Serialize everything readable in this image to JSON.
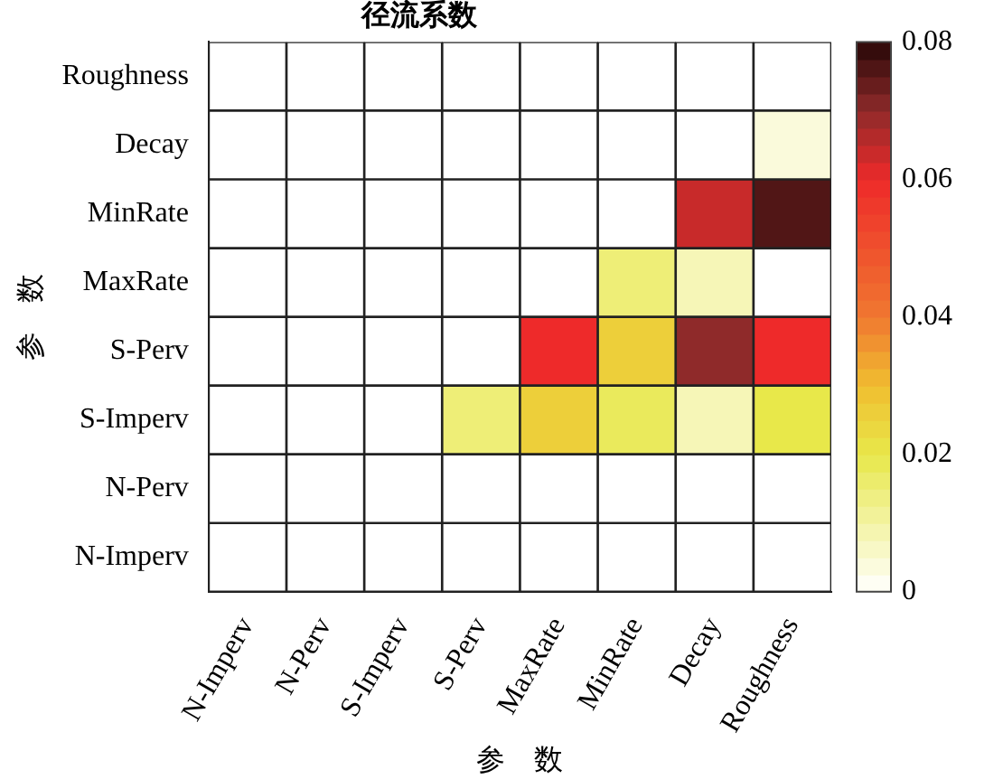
{
  "chart_data": {
    "type": "heatmap",
    "title": "径流系数",
    "xlabel": "参　数",
    "ylabel": "参　数",
    "categories": [
      "N-Imperv",
      "N-Perv",
      "S-Imperv",
      "S-Perv",
      "MaxRate",
      "MinRate",
      "Decay",
      "Roughness"
    ],
    "y_categories": [
      "Roughness",
      "Decay",
      "MinRate",
      "MaxRate",
      "S-Perv",
      "S-Imperv",
      "N-Perv",
      "N-Imperv"
    ],
    "cells": [
      [
        0,
        0,
        0,
        0,
        0,
        0,
        0,
        0
      ],
      [
        0,
        0,
        0,
        0,
        0,
        0,
        0,
        0.004
      ],
      [
        0,
        0,
        0,
        0,
        0,
        0,
        0.064,
        0.076
      ],
      [
        0,
        0,
        0,
        0,
        0,
        0.015,
        0.008,
        0
      ],
      [
        0,
        0,
        0,
        0,
        0.06,
        0.026,
        0.07,
        0.06
      ],
      [
        0,
        0,
        0,
        0.015,
        0.026,
        0.018,
        0.008,
        0.02
      ],
      [
        0,
        0,
        0,
        0,
        0,
        0,
        0,
        0
      ],
      [
        0,
        0,
        0,
        0,
        0,
        0,
        0,
        0
      ]
    ],
    "clim": [
      0,
      0.08
    ],
    "cticks": [
      0,
      0.02,
      0.04,
      0.06,
      0.08
    ]
  }
}
